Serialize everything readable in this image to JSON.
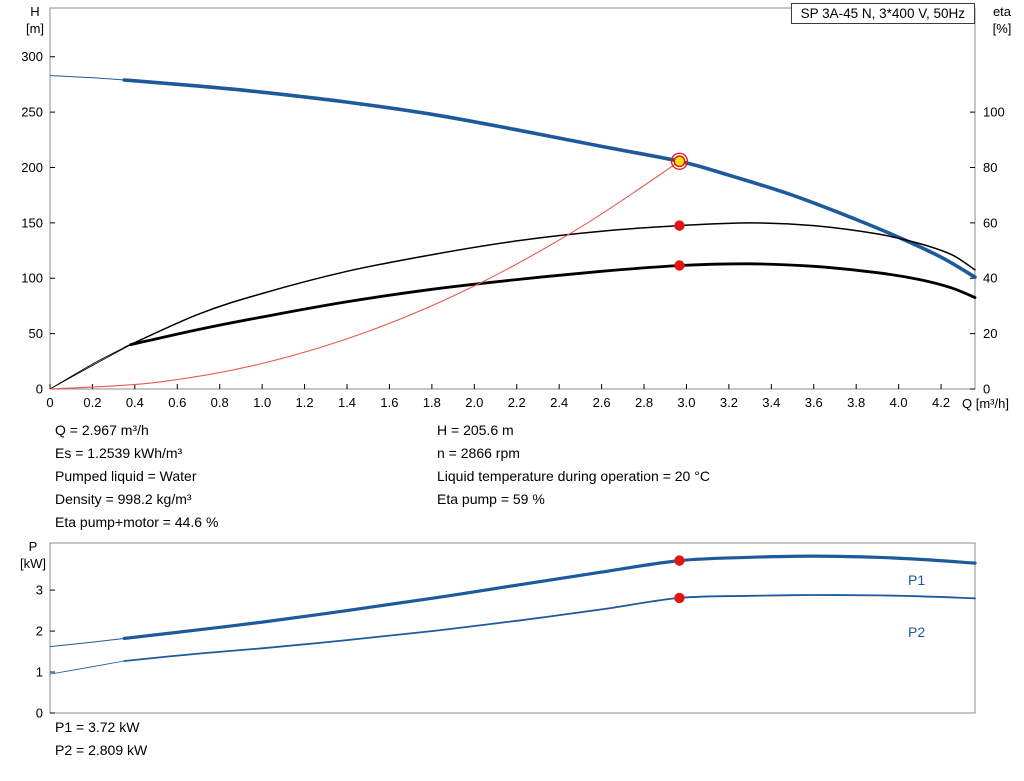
{
  "title_box": "SP 3A-45 N, 3*400 V, 50Hz",
  "axes": {
    "h": "H",
    "h_unit": "[m]",
    "eta": "eta",
    "eta_unit": "[%]",
    "q": "Q [m³/h]",
    "p": "P",
    "p_unit": "[kW]"
  },
  "colors": {
    "blue": "#1d5a9b",
    "black": "#000000",
    "frame": "#8c8c8c",
    "red_dot": "#e31414",
    "yellow": "#ffe000",
    "red_line": "#e9594e",
    "text": "#000000"
  },
  "power_labels": {
    "p1": "P1",
    "p2": "P2"
  },
  "info": {
    "left": [
      "Q = 2.967 m³/h",
      "Es = 1.2539 kWh/m³",
      "Pumped liquid = Water",
      "Density = 998.2 kg/m³",
      "Eta pump+motor = 44.6 %"
    ],
    "right": [
      "H = 205.6 m",
      "n = 2866 rpm",
      "Liquid temperature during operation = 20 °C",
      "Eta pump = 59 %"
    ]
  },
  "footer": [
    "P1 = 3.72 kW",
    "P2 = 2.809 kW"
  ],
  "chart_data": [
    {
      "type": "line",
      "title": "SP 3A-45 N, 3*400 V, 50Hz",
      "xlabel": "Q [m³/h]",
      "ylabel_left": "H [m]",
      "ylabel_right": "eta [%]",
      "xlim": [
        0,
        4.36
      ],
      "ylim_left": [
        0,
        344
      ],
      "ylim_right": [
        0,
        137.6
      ],
      "grid": false,
      "x_ticks": [
        0,
        0.2,
        0.4,
        0.6,
        0.8,
        1,
        1.2,
        1.4,
        1.6,
        1.8,
        2,
        2.2,
        2.4,
        2.6,
        2.8,
        3,
        3.2,
        3.4,
        3.6,
        3.8,
        4,
        4.2
      ],
      "x_tick_labels": [
        "0",
        "0.2",
        "0.4",
        "0.6",
        "0.8",
        "1.0",
        "1.2",
        "1.4",
        "1.6",
        "1.8",
        "2.0",
        "2.2",
        "2.4",
        "2.6",
        "2.8",
        "3.0",
        "3.2",
        "3.4",
        "3.6",
        "3.8",
        "4.0",
        "4.2"
      ],
      "y_ticks_left": [
        0,
        50,
        100,
        150,
        200,
        250,
        300
      ],
      "y_ticks_right": [
        0,
        20,
        40,
        60,
        80,
        100
      ],
      "series": [
        {
          "name": "head-curve",
          "label": "H (pump curve)",
          "axis": "left",
          "color": "#1d5a9b",
          "width": 3.6,
          "thin_until": 0.35,
          "thin_width": 1,
          "points": [
            [
              0,
              283
            ],
            [
              0.2,
              281
            ],
            [
              0.35,
              279
            ],
            [
              0.7,
              273.5
            ],
            [
              1,
              268
            ],
            [
              1.4,
              259
            ],
            [
              1.8,
              248
            ],
            [
              2.2,
              234
            ],
            [
              2.6,
              219
            ],
            [
              2.967,
              205.6
            ],
            [
              3.2,
              193
            ],
            [
              3.5,
              175
            ],
            [
              3.8,
              153
            ],
            [
              4,
              137
            ],
            [
              4.2,
              119
            ],
            [
              4.36,
              101
            ]
          ]
        },
        {
          "name": "eta-pump-curve",
          "label": "eta pump",
          "axis": "right",
          "color": "#000000",
          "width": 1.5,
          "thin_until": 0.35,
          "thin_width": 0.8,
          "points": [
            [
              0,
              0
            ],
            [
              0.2,
              9
            ],
            [
              0.35,
              15
            ],
            [
              0.7,
              27
            ],
            [
              1,
              34.5
            ],
            [
              1.4,
              42.5
            ],
            [
              1.8,
              48.5
            ],
            [
              2.2,
              53.5
            ],
            [
              2.6,
              57
            ],
            [
              2.967,
              59
            ],
            [
              3.3,
              60
            ],
            [
              3.6,
              59
            ],
            [
              3.9,
              56
            ],
            [
              4.1,
              52.5
            ],
            [
              4.25,
              48.5
            ],
            [
              4.36,
              43
            ]
          ]
        },
        {
          "name": "eta-pump-motor-curve",
          "label": "eta pump+motor",
          "axis": "right",
          "color": "#000000",
          "width": 2.8,
          "thin_until": 0.38,
          "thin_width": 0.8,
          "points": [
            [
              0,
              0
            ],
            [
              0.2,
              8.5
            ],
            [
              0.38,
              16
            ],
            [
              0.7,
              21.5
            ],
            [
              1,
              26
            ],
            [
              1.4,
              31.5
            ],
            [
              1.8,
              36
            ],
            [
              2.2,
              39.5
            ],
            [
              2.6,
              42.5
            ],
            [
              2.967,
              44.6
            ],
            [
              3.3,
              45.2
            ],
            [
              3.6,
              44.3
            ],
            [
              3.9,
              42
            ],
            [
              4.1,
              39.5
            ],
            [
              4.25,
              36.5
            ],
            [
              4.36,
              33
            ]
          ]
        },
        {
          "name": "energy-curve",
          "label": "Es",
          "axis": "left",
          "color": "#e9594e",
          "width": 1.1,
          "points": [
            [
              0,
              0
            ],
            [
              0.5,
              6
            ],
            [
              1,
              23
            ],
            [
              1.5,
              52
            ],
            [
              2,
              93
            ],
            [
              2.5,
              146
            ],
            [
              2.967,
              205.6
            ]
          ]
        }
      ],
      "duty_markers": [
        {
          "q": 2.967,
          "value": 205.6,
          "axis": "left",
          "style": "duty-circle"
        },
        {
          "q": 2.967,
          "value": 59,
          "axis": "right",
          "style": "red-dot"
        },
        {
          "q": 2.967,
          "value": 44.6,
          "axis": "right",
          "style": "red-dot"
        }
      ]
    },
    {
      "type": "line",
      "title": "",
      "xlabel": "",
      "ylabel_left": "P [kW]",
      "xlim": [
        0,
        4.36
      ],
      "ylim_left": [
        0,
        4.15
      ],
      "grid": false,
      "y_ticks_left": [
        0,
        1,
        2,
        3
      ],
      "series": [
        {
          "name": "p1-curve",
          "label": "P1",
          "axis": "left",
          "color": "#1d5a9b",
          "width": 3.2,
          "thin_until": 0.35,
          "thin_width": 1,
          "points": [
            [
              0,
              1.62
            ],
            [
              0.2,
              1.73
            ],
            [
              0.35,
              1.82
            ],
            [
              0.7,
              2.03
            ],
            [
              1,
              2.22
            ],
            [
              1.4,
              2.5
            ],
            [
              1.8,
              2.8
            ],
            [
              2.2,
              3.12
            ],
            [
              2.6,
              3.44
            ],
            [
              2.967,
              3.72
            ],
            [
              3.3,
              3.8
            ],
            [
              3.6,
              3.83
            ],
            [
              3.9,
              3.8
            ],
            [
              4.1,
              3.75
            ],
            [
              4.36,
              3.66
            ]
          ]
        },
        {
          "name": "p2-curve",
          "label": "P2",
          "axis": "left",
          "color": "#1d5a9b",
          "width": 1.8,
          "thin_until": 0.35,
          "thin_width": 0.8,
          "points": [
            [
              0,
              0.95
            ],
            [
              0.2,
              1.13
            ],
            [
              0.35,
              1.27
            ],
            [
              0.7,
              1.45
            ],
            [
              1,
              1.58
            ],
            [
              1.4,
              1.78
            ],
            [
              1.8,
              2
            ],
            [
              2.2,
              2.25
            ],
            [
              2.6,
              2.53
            ],
            [
              2.967,
              2.809
            ],
            [
              3.3,
              2.86
            ],
            [
              3.6,
              2.88
            ],
            [
              3.9,
              2.87
            ],
            [
              4.1,
              2.85
            ],
            [
              4.36,
              2.8
            ]
          ]
        }
      ],
      "duty_markers": [
        {
          "q": 2.967,
          "value": 3.72,
          "axis": "left",
          "style": "red-dot"
        },
        {
          "q": 2.967,
          "value": 2.809,
          "axis": "left",
          "style": "red-dot"
        }
      ]
    }
  ]
}
